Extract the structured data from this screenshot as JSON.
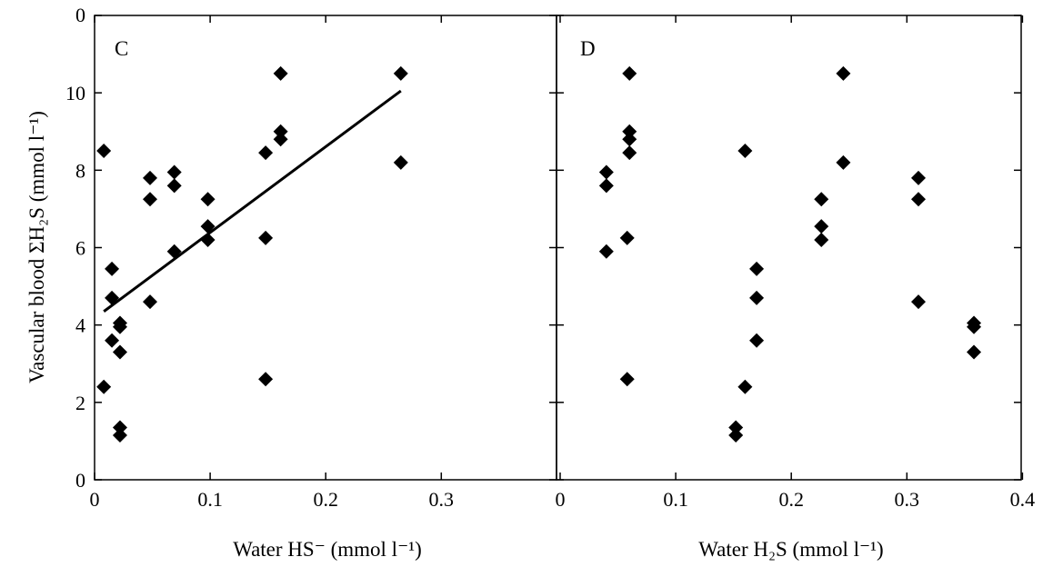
{
  "colors": {
    "ink": "#000000",
    "background": "#ffffff"
  },
  "y_axis": {
    "title": "Vascular blood ΣH₂S (mmol l⁻¹)",
    "ticks": [
      "0",
      "2",
      "4",
      "6",
      "8",
      "10"
    ],
    "top_label": "0",
    "range": [
      0,
      12
    ]
  },
  "chart_data": [
    {
      "type": "scatter",
      "panel_label": "C",
      "xlabel": "Water HS⁻ (mmol l⁻¹)",
      "ylabel": "Vascular blood ΣH₂S (mmol l⁻¹)",
      "xlim": [
        0,
        0.4
      ],
      "ylim": [
        0,
        12
      ],
      "x_ticks": [
        "0",
        "0.1",
        "0.2",
        "0.3"
      ],
      "marker": "diamond",
      "points": [
        {
          "x": 0.008,
          "y": 8.5
        },
        {
          "x": 0.008,
          "y": 2.4
        },
        {
          "x": 0.015,
          "y": 5.45
        },
        {
          "x": 0.015,
          "y": 4.7
        },
        {
          "x": 0.015,
          "y": 3.6
        },
        {
          "x": 0.022,
          "y": 4.05
        },
        {
          "x": 0.022,
          "y": 3.95
        },
        {
          "x": 0.022,
          "y": 3.3
        },
        {
          "x": 0.022,
          "y": 1.35
        },
        {
          "x": 0.022,
          "y": 1.15
        },
        {
          "x": 0.048,
          "y": 7.8
        },
        {
          "x": 0.048,
          "y": 7.25
        },
        {
          "x": 0.048,
          "y": 4.6
        },
        {
          "x": 0.069,
          "y": 7.95
        },
        {
          "x": 0.069,
          "y": 7.6
        },
        {
          "x": 0.069,
          "y": 5.9
        },
        {
          "x": 0.098,
          "y": 7.25
        },
        {
          "x": 0.098,
          "y": 6.55
        },
        {
          "x": 0.098,
          "y": 6.2
        },
        {
          "x": 0.148,
          "y": 8.45
        },
        {
          "x": 0.148,
          "y": 6.25
        },
        {
          "x": 0.148,
          "y": 2.6
        },
        {
          "x": 0.161,
          "y": 10.5
        },
        {
          "x": 0.161,
          "y": 9.0
        },
        {
          "x": 0.161,
          "y": 8.8
        },
        {
          "x": 0.265,
          "y": 10.5
        },
        {
          "x": 0.265,
          "y": 8.2
        }
      ],
      "fit_line": {
        "x": [
          0.008,
          0.265
        ],
        "y": [
          4.35,
          10.05
        ]
      }
    },
    {
      "type": "scatter",
      "panel_label": "D",
      "xlabel": "Water H₂S (mmol l⁻¹)",
      "ylabel": "",
      "xlim": [
        0,
        0.4
      ],
      "ylim": [
        0,
        12
      ],
      "x_ticks": [
        "0",
        "0.1",
        "0.2",
        "0.3",
        "0.4"
      ],
      "marker": "diamond",
      "points": [
        {
          "x": 0.04,
          "y": 7.95
        },
        {
          "x": 0.04,
          "y": 7.6
        },
        {
          "x": 0.04,
          "y": 5.9
        },
        {
          "x": 0.058,
          "y": 6.25
        },
        {
          "x": 0.058,
          "y": 2.6
        },
        {
          "x": 0.06,
          "y": 10.5
        },
        {
          "x": 0.06,
          "y": 9.0
        },
        {
          "x": 0.06,
          "y": 8.8
        },
        {
          "x": 0.06,
          "y": 8.45
        },
        {
          "x": 0.152,
          "y": 1.35
        },
        {
          "x": 0.152,
          "y": 1.15
        },
        {
          "x": 0.16,
          "y": 8.5
        },
        {
          "x": 0.16,
          "y": 2.4
        },
        {
          "x": 0.17,
          "y": 5.45
        },
        {
          "x": 0.17,
          "y": 4.7
        },
        {
          "x": 0.17,
          "y": 3.6
        },
        {
          "x": 0.226,
          "y": 7.25
        },
        {
          "x": 0.226,
          "y": 6.55
        },
        {
          "x": 0.226,
          "y": 6.2
        },
        {
          "x": 0.245,
          "y": 10.5
        },
        {
          "x": 0.245,
          "y": 8.2
        },
        {
          "x": 0.31,
          "y": 7.8
        },
        {
          "x": 0.31,
          "y": 7.25
        },
        {
          "x": 0.31,
          "y": 4.6
        },
        {
          "x": 0.358,
          "y": 4.05
        },
        {
          "x": 0.358,
          "y": 3.95
        },
        {
          "x": 0.358,
          "y": 3.3
        }
      ]
    }
  ]
}
